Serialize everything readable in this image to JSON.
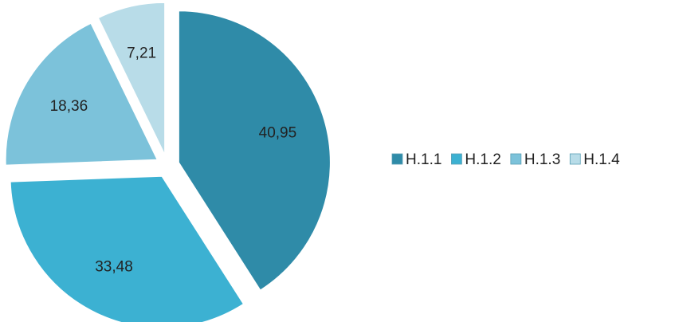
{
  "chart_data": {
    "type": "pie",
    "categories": [
      "H.1.1",
      "H.1.2",
      "H.1.3",
      "H.1.4"
    ],
    "values": [
      40.95,
      33.48,
      18.36,
      7.21
    ],
    "value_labels": [
      "40,95",
      "33,48",
      "18,36",
      "7,21"
    ],
    "colors": [
      "#2f8ba8",
      "#3cb1d2",
      "#7cc2da",
      "#b8dce8"
    ],
    "legend": "right"
  }
}
